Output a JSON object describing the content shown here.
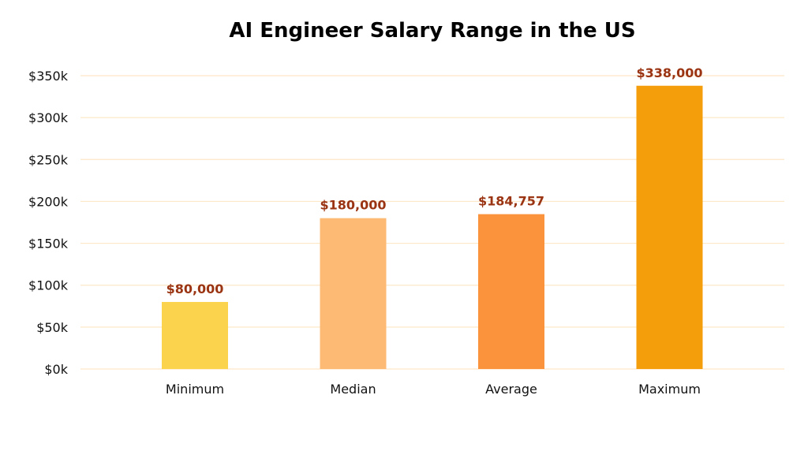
{
  "chart_data": {
    "type": "bar",
    "title": "AI Engineer Salary Range in the US",
    "xlabel": "",
    "ylabel": "",
    "categories": [
      "Minimum",
      "Median",
      "Average",
      "Maximum"
    ],
    "values": [
      80000,
      180000,
      184757,
      338000
    ],
    "data_labels": [
      "$80,000",
      "$180,000",
      "$184,757",
      "$338,000"
    ],
    "bar_colors": [
      "#FCD34D",
      "#FDBA74",
      "#FB923C",
      "#F59E0B"
    ],
    "label_color": "#9A3412",
    "grid_color": "#FDE8C8",
    "ylim": [
      0,
      350000
    ],
    "yticks": [
      0,
      50000,
      100000,
      150000,
      200000,
      250000,
      300000,
      350000
    ],
    "ytick_labels": [
      "$0k",
      "$50k",
      "$100k",
      "$150k",
      "$200k",
      "$250k",
      "$300k",
      "$350k"
    ],
    "grid": true,
    "legend": "none"
  }
}
